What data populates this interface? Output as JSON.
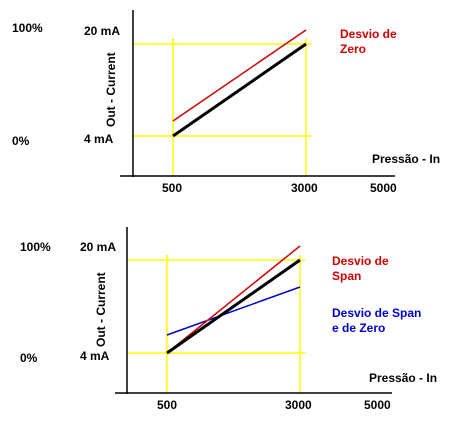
{
  "charts": [
    {
      "pct_top": "100%",
      "pct_bottom": "0%",
      "ma_top": "20 mA",
      "ma_bottom": "4 mA",
      "ylabel": "Out - Current",
      "xlabel": "Pressão - In",
      "x_ticks": [
        "500",
        "3000",
        "5000"
      ],
      "annotations": [
        {
          "text": [
            "Desvio de",
            "Zero"
          ],
          "color": "#d00000"
        }
      ]
    },
    {
      "pct_top": "100%",
      "pct_bottom": "0%",
      "ma_top": "20 mA",
      "ma_bottom": "4 mA",
      "ylabel": "Out - Current",
      "xlabel": "Pressão - In",
      "x_ticks": [
        "500",
        "3000",
        "5000"
      ],
      "annotations": [
        {
          "text": [
            "Desvio de",
            "Span"
          ],
          "color": "#d00000"
        },
        {
          "text": [
            "Desvio de Span",
            "e de Zero"
          ],
          "color": "#0000cc"
        }
      ]
    }
  ],
  "colors": {
    "axis": "#000000",
    "guide": "#ffff00",
    "ideal": "#000000",
    "zero_shift": "#d00000",
    "span_shift": "#d00000",
    "span_zero_shift": "#0000cc"
  },
  "chart_data": [
    {
      "type": "line",
      "xlabel": "Pressão - In",
      "ylabel": "Out - Current",
      "x_ticks": [
        500,
        3000,
        5000
      ],
      "y_ticks": [
        "4 mA",
        "20 mA"
      ],
      "ylim": [
        4,
        20
      ],
      "series": [
        {
          "color": "#000000",
          "x": [
            500,
            3000
          ],
          "y": [
            4,
            20
          ]
        },
        {
          "name": "Desvio de Zero",
          "color": "#d00000",
          "x": [
            500,
            3000
          ],
          "y": [
            6,
            22
          ]
        }
      ],
      "grid": false
    },
    {
      "type": "line",
      "xlabel": "Pressão - In",
      "ylabel": "Out - Current",
      "x_ticks": [
        500,
        3000,
        5000
      ],
      "y_ticks": [
        "4 mA",
        "20 mA"
      ],
      "ylim": [
        4,
        20
      ],
      "series": [
        {
          "color": "#000000",
          "x": [
            500,
            3000
          ],
          "y": [
            4,
            20
          ]
        },
        {
          "name": "Desvio de Span",
          "color": "#d00000",
          "x": [
            500,
            3000
          ],
          "y": [
            4,
            22.4
          ]
        },
        {
          "name": "Desvio de Span e de Zero",
          "color": "#0000cc",
          "x": [
            500,
            3000
          ],
          "y": [
            8.2,
            15.4
          ]
        }
      ],
      "grid": false
    }
  ]
}
